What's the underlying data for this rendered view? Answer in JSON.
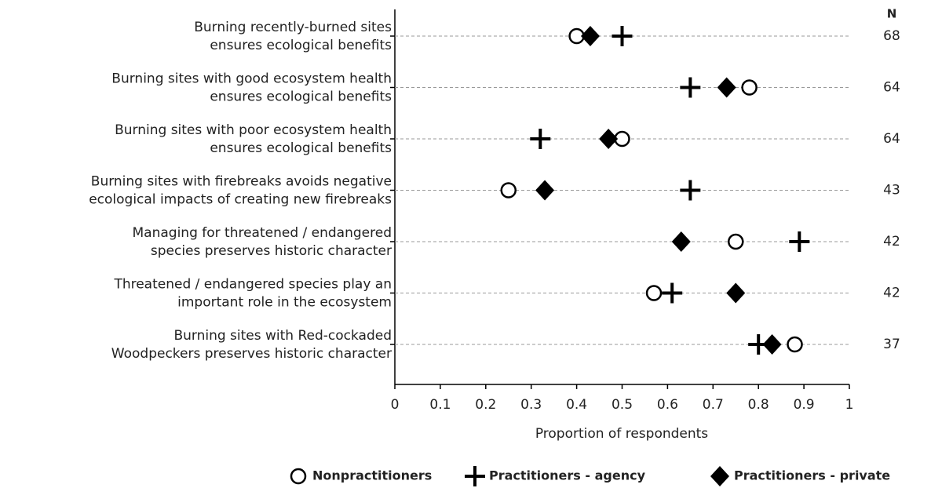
{
  "chart_data": {
    "type": "dot",
    "categories": [
      [
        "Burning recently-burned sites",
        "ensures ecological benefits"
      ],
      [
        "Burning sites with good ecosystem health",
        "ensures ecological benefits"
      ],
      [
        "Burning sites with poor ecosystem health",
        "ensures ecological benefits"
      ],
      [
        "Burning sites with firebreaks avoids negative",
        "ecological impacts of creating new firebreaks"
      ],
      [
        "Managing for threatened / endangered",
        "species preserves historic character"
      ],
      [
        "Threatened / endangered species play an",
        "important role in the ecosystem"
      ],
      [
        "Burning sites with Red-cockaded",
        "Woodpeckers preserves historic character"
      ]
    ],
    "series": [
      {
        "name": "Nonpractitioners",
        "marker": "circle",
        "color": "#000000",
        "values": [
          0.4,
          0.78,
          0.5,
          0.25,
          0.75,
          0.57,
          0.88
        ]
      },
      {
        "name": "Practitioners - agency",
        "marker": "plus",
        "color": "#000000",
        "values": [
          0.5,
          0.65,
          0.32,
          0.65,
          0.89,
          0.61,
          0.8
        ]
      },
      {
        "name": "Practitioners - private",
        "marker": "diamond",
        "color": "#000000",
        "values": [
          0.43,
          0.73,
          0.47,
          0.33,
          0.63,
          0.75,
          0.83
        ]
      }
    ],
    "n_label": "N",
    "n": [
      68,
      64,
      64,
      43,
      42,
      42,
      37
    ],
    "xlabel": "Proportion of respondents",
    "xlim": [
      0,
      1
    ],
    "xticks": [
      0,
      0.1,
      0.2,
      0.3,
      0.4,
      0.5,
      0.6,
      0.7,
      0.8,
      0.9,
      1
    ]
  }
}
